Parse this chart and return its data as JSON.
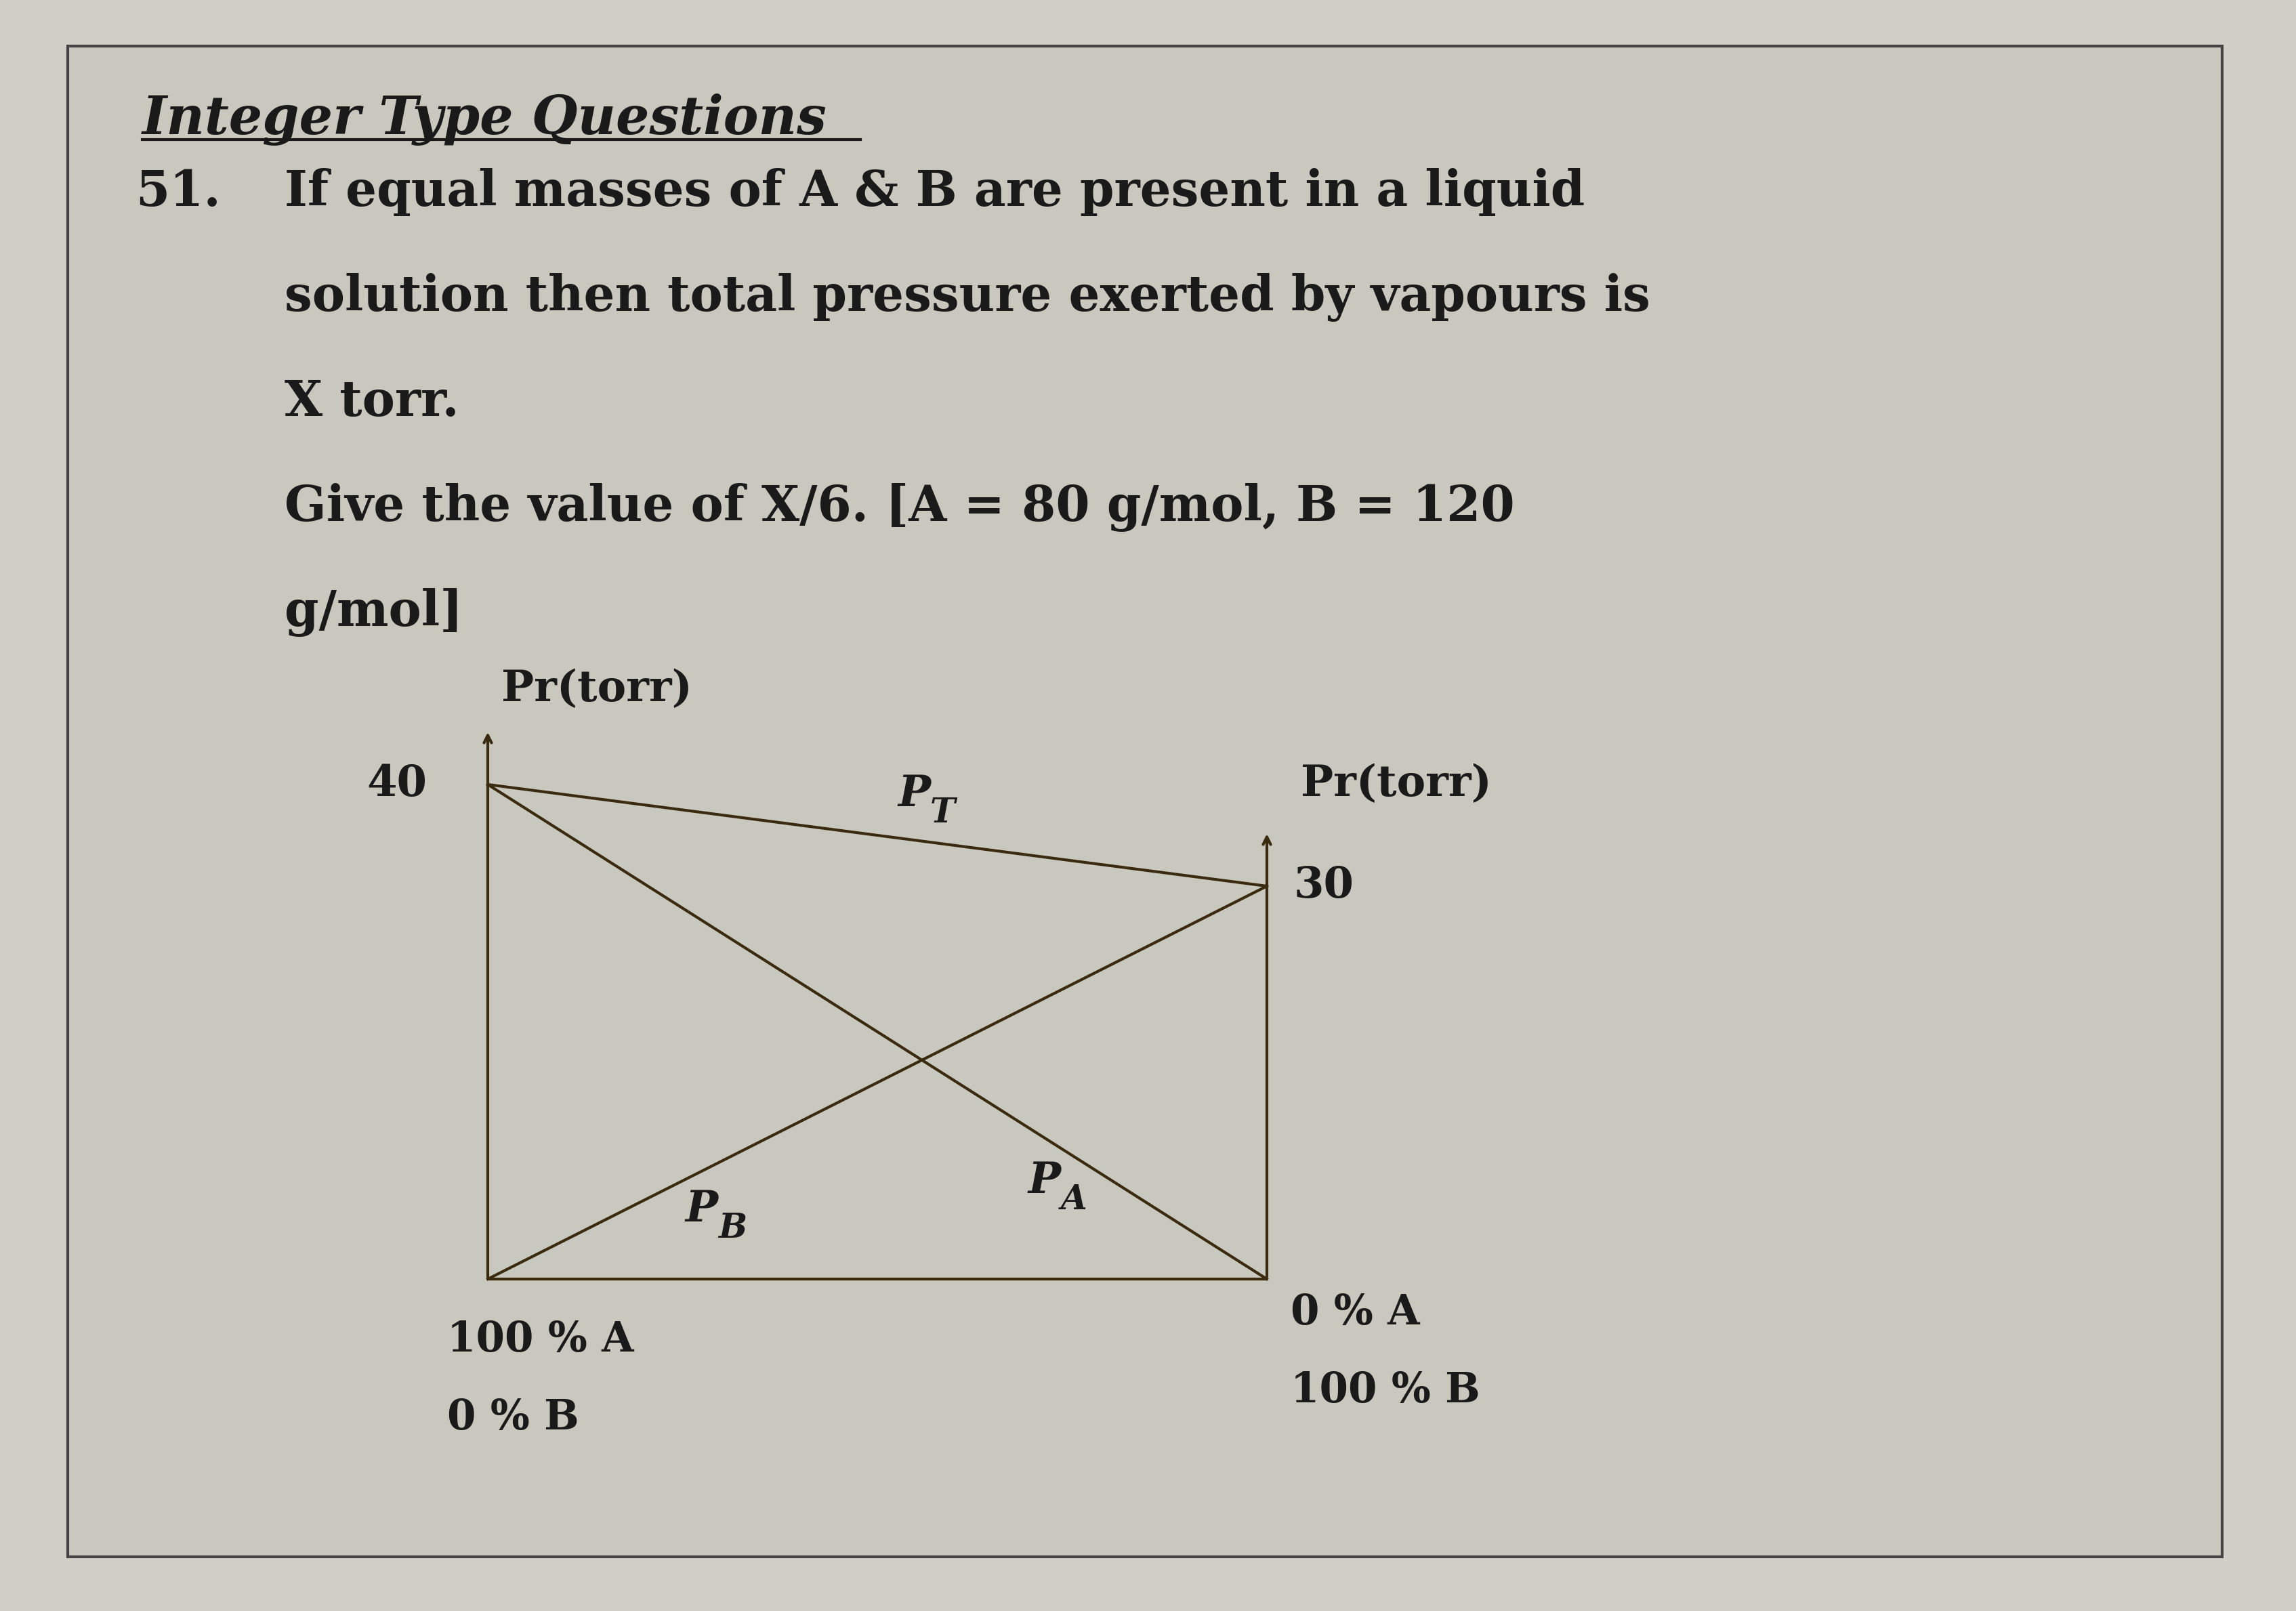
{
  "background_color": "#c8c8c0",
  "page_bg": "#d0d0c8",
  "border_color": "#444444",
  "title": "Integer Type Questions",
  "question_number": "51.",
  "question_text_line1": "If equal masses of A & B are present in a liquid",
  "question_text_line2": "solution then total pressure exerted by vapours is",
  "question_text_line3": "X torr.",
  "question_text_line4": "Give the value of X/6. [A = 80 g/mol, B = 120",
  "question_text_line5": "g/mol]",
  "left_ylabel": "Pr(torr)",
  "right_ylabel": "Pr(torr)",
  "left_y_value": "40",
  "right_y_value": "30",
  "left_x_label1": "100 % A",
  "left_x_label2": "0 % B",
  "right_x_label1": "0 % A",
  "right_x_label2": "100 % B",
  "line_color": "#3a2a10",
  "text_color": "#1a1a1a",
  "font_size_title": 56,
  "font_size_question": 52,
  "font_size_axis": 46,
  "font_size_subscript": 36,
  "font_size_bottom_labels": 44
}
